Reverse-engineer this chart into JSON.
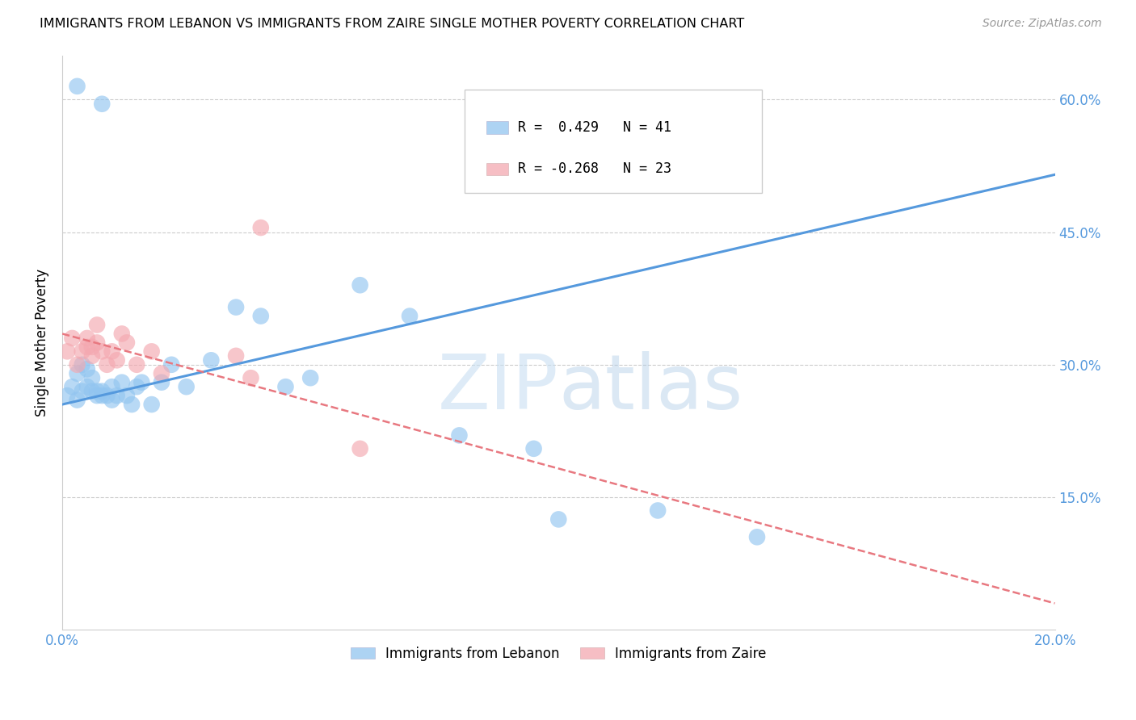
{
  "title": "IMMIGRANTS FROM LEBANON VS IMMIGRANTS FROM ZAIRE SINGLE MOTHER POVERTY CORRELATION CHART",
  "source": "Source: ZipAtlas.com",
  "ylabel": "Single Mother Poverty",
  "xlim": [
    0.0,
    0.2
  ],
  "ylim": [
    0.0,
    0.65
  ],
  "legend_R_lebanon": "R =  0.429",
  "legend_N_lebanon": "N = 41",
  "legend_R_zaire": "R = -0.268",
  "legend_N_zaire": "N = 23",
  "lebanon_color": "#92C5F0",
  "zaire_color": "#F4A8B0",
  "lebanon_line_color": "#5599DD",
  "zaire_line_color": "#E87880",
  "lebanon_x": [
    0.001,
    0.002,
    0.003,
    0.003,
    0.004,
    0.004,
    0.005,
    0.005,
    0.006,
    0.006,
    0.007,
    0.007,
    0.008,
    0.008,
    0.009,
    0.01,
    0.01,
    0.011,
    0.012,
    0.013,
    0.014,
    0.015,
    0.016,
    0.018,
    0.02,
    0.022,
    0.025,
    0.03,
    0.035,
    0.04,
    0.045,
    0.05,
    0.06,
    0.07,
    0.08,
    0.095,
    0.1,
    0.12,
    0.14,
    0.003,
    0.008
  ],
  "lebanon_y": [
    0.265,
    0.275,
    0.26,
    0.29,
    0.27,
    0.3,
    0.275,
    0.295,
    0.27,
    0.285,
    0.27,
    0.265,
    0.27,
    0.265,
    0.265,
    0.275,
    0.26,
    0.265,
    0.28,
    0.265,
    0.255,
    0.275,
    0.28,
    0.255,
    0.28,
    0.3,
    0.275,
    0.305,
    0.365,
    0.355,
    0.275,
    0.285,
    0.39,
    0.355,
    0.22,
    0.205,
    0.125,
    0.135,
    0.105,
    0.615,
    0.595
  ],
  "zaire_x": [
    0.001,
    0.002,
    0.003,
    0.004,
    0.005,
    0.005,
    0.006,
    0.006,
    0.007,
    0.007,
    0.008,
    0.009,
    0.01,
    0.011,
    0.012,
    0.013,
    0.015,
    0.018,
    0.02,
    0.035,
    0.038,
    0.04,
    0.06
  ],
  "zaire_y": [
    0.315,
    0.33,
    0.3,
    0.315,
    0.33,
    0.32,
    0.32,
    0.31,
    0.345,
    0.325,
    0.315,
    0.3,
    0.315,
    0.305,
    0.335,
    0.325,
    0.3,
    0.315,
    0.29,
    0.31,
    0.285,
    0.455,
    0.205
  ],
  "leb_line_x0": 0.0,
  "leb_line_x1": 0.2,
  "leb_line_y0": 0.255,
  "leb_line_y1": 0.515,
  "zaire_line_x0": 0.0,
  "zaire_line_x1": 0.2,
  "zaire_line_y0": 0.335,
  "zaire_line_y1": 0.03
}
